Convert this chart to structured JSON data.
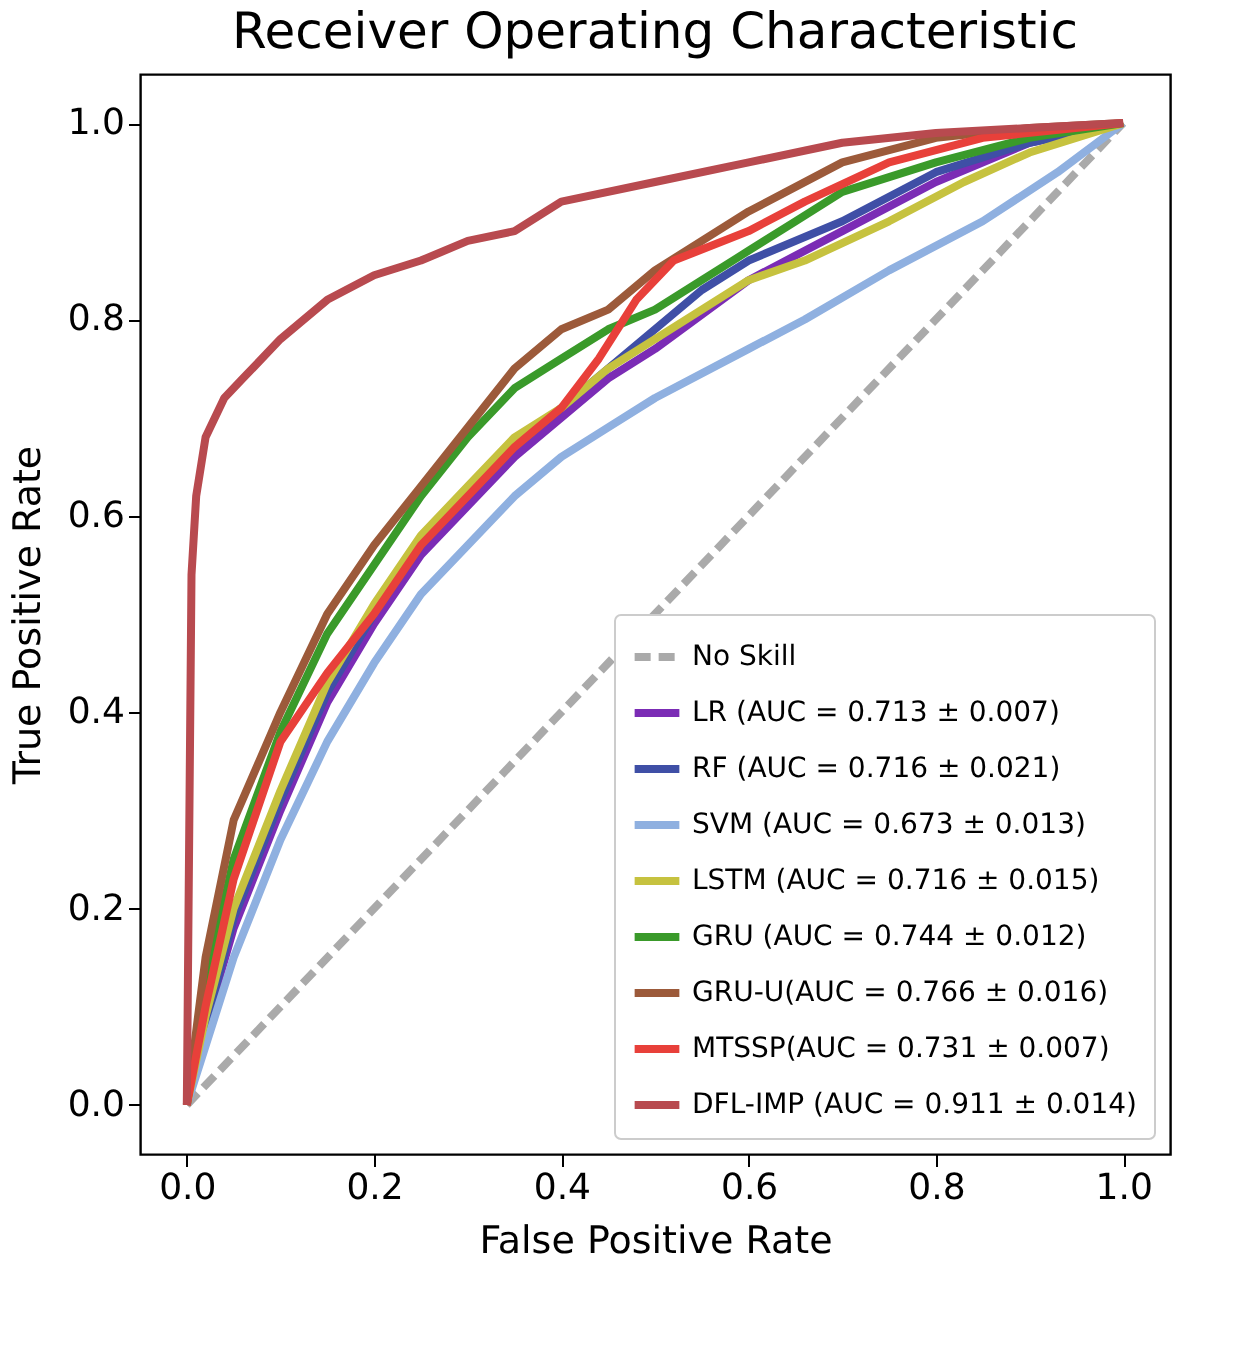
{
  "chart_data": {
    "type": "line",
    "title": "Receiver Operating Characteristic",
    "xlabel": "False Positive Rate",
    "ylabel": "True Positive Rate",
    "xlim": [
      -0.05,
      1.05
    ],
    "ylim": [
      -0.05,
      1.05
    ],
    "xticks": [
      {
        "value": 0,
        "label": "0.0"
      },
      {
        "value": 0.2,
        "label": "0.2"
      },
      {
        "value": 0.4,
        "label": "0.4"
      },
      {
        "value": 0.6,
        "label": "0.6"
      },
      {
        "value": 0.8,
        "label": "0.8"
      },
      {
        "value": 1,
        "label": "1.0"
      }
    ],
    "yticks": [
      {
        "value": 0,
        "label": "0.0"
      },
      {
        "value": 0.2,
        "label": "0.2"
      },
      {
        "value": 0.4,
        "label": "0.4"
      },
      {
        "value": 0.6,
        "label": "0.6"
      },
      {
        "value": 0.8,
        "label": "0.8"
      },
      {
        "value": 1,
        "label": "1.0"
      }
    ],
    "grid": false,
    "legend": "bottom right",
    "marker": "none",
    "series": [
      {
        "name": "No Skill",
        "color": "#aaaaaa",
        "line_style": "dashed",
        "x": [
          0,
          1
        ],
        "values": [
          0,
          1
        ]
      },
      {
        "name": "LR (AUC = 0.713 ± 0.007)",
        "color": "#7b2cb5",
        "x": [
          0,
          0.02,
          0.05,
          0.1,
          0.15,
          0.2,
          0.25,
          0.3,
          0.35,
          0.4,
          0.45,
          0.5,
          0.6,
          0.7,
          0.8,
          0.9,
          1
        ],
        "values": [
          0,
          0.08,
          0.18,
          0.3,
          0.41,
          0.49,
          0.56,
          0.61,
          0.66,
          0.7,
          0.74,
          0.77,
          0.84,
          0.89,
          0.94,
          0.98,
          1
        ]
      },
      {
        "name": "RF (AUC = 0.716 ± 0.021)",
        "color": "#3f4fa6",
        "x": [
          0,
          0.02,
          0.05,
          0.1,
          0.15,
          0.2,
          0.25,
          0.3,
          0.35,
          0.4,
          0.45,
          0.5,
          0.55,
          0.6,
          0.7,
          0.8,
          0.9,
          1
        ],
        "values": [
          0,
          0.08,
          0.19,
          0.31,
          0.42,
          0.5,
          0.57,
          0.62,
          0.67,
          0.71,
          0.75,
          0.79,
          0.83,
          0.86,
          0.9,
          0.95,
          0.98,
          1
        ]
      },
      {
        "name": "SVM (AUC = 0.673 ± 0.013)",
        "color": "#8fb0e0",
        "x": [
          0,
          0.02,
          0.05,
          0.1,
          0.15,
          0.2,
          0.25,
          0.3,
          0.35,
          0.4,
          0.45,
          0.5,
          0.6,
          0.66,
          0.75,
          0.85,
          0.93,
          1
        ],
        "values": [
          0,
          0.06,
          0.15,
          0.27,
          0.37,
          0.45,
          0.52,
          0.57,
          0.62,
          0.66,
          0.69,
          0.72,
          0.77,
          0.8,
          0.85,
          0.9,
          0.95,
          1
        ]
      },
      {
        "name": "LSTM (AUC = 0.716 ± 0.015)",
        "color": "#c6c23f",
        "x": [
          0,
          0.02,
          0.05,
          0.1,
          0.15,
          0.2,
          0.25,
          0.3,
          0.35,
          0.4,
          0.45,
          0.5,
          0.55,
          0.6,
          0.66,
          0.75,
          0.83,
          0.9,
          1
        ],
        "values": [
          0,
          0.09,
          0.2,
          0.32,
          0.43,
          0.51,
          0.58,
          0.63,
          0.68,
          0.71,
          0.75,
          0.78,
          0.81,
          0.84,
          0.86,
          0.9,
          0.94,
          0.97,
          1
        ]
      },
      {
        "name": "GRU (AUC = 0.744 ± 0.012)",
        "color": "#3a9a2a",
        "x": [
          0,
          0.02,
          0.05,
          0.1,
          0.15,
          0.2,
          0.25,
          0.3,
          0.35,
          0.4,
          0.45,
          0.5,
          0.55,
          0.6,
          0.65,
          0.7,
          0.8,
          0.9,
          1
        ],
        "values": [
          0,
          0.12,
          0.25,
          0.38,
          0.48,
          0.55,
          0.62,
          0.68,
          0.73,
          0.76,
          0.79,
          0.81,
          0.84,
          0.87,
          0.9,
          0.93,
          0.96,
          0.985,
          1
        ]
      },
      {
        "name": "GRU-U(AUC = 0.766 ± 0.016)",
        "color": "#9c5a3a",
        "x": [
          0,
          0.02,
          0.05,
          0.1,
          0.15,
          0.2,
          0.25,
          0.3,
          0.35,
          0.4,
          0.45,
          0.5,
          0.55,
          0.6,
          0.7,
          0.8,
          0.9,
          1
        ],
        "values": [
          0,
          0.15,
          0.29,
          0.4,
          0.5,
          0.57,
          0.63,
          0.69,
          0.75,
          0.79,
          0.81,
          0.85,
          0.88,
          0.91,
          0.96,
          0.985,
          0.995,
          1
        ]
      },
      {
        "name": "MTSSP(AUC = 0.731 ± 0.007)",
        "color": "#e8403a",
        "x": [
          0,
          0.02,
          0.05,
          0.1,
          0.15,
          0.2,
          0.25,
          0.3,
          0.35,
          0.4,
          0.44,
          0.48,
          0.52,
          0.6,
          0.66,
          0.75,
          0.85,
          1
        ],
        "values": [
          0,
          0.1,
          0.23,
          0.37,
          0.44,
          0.5,
          0.57,
          0.62,
          0.67,
          0.71,
          0.76,
          0.82,
          0.86,
          0.89,
          0.92,
          0.96,
          0.985,
          1
        ]
      },
      {
        "name": "DFL-IMP (AUC = 0.911 ± 0.014)",
        "color": "#b84a4f",
        "x": [
          0,
          0.005,
          0.01,
          0.02,
          0.04,
          0.06,
          0.1,
          0.15,
          0.2,
          0.25,
          0.3,
          0.35,
          0.4,
          0.5,
          0.6,
          0.7,
          0.8,
          0.9,
          1
        ],
        "values": [
          0,
          0.54,
          0.62,
          0.68,
          0.72,
          0.74,
          0.78,
          0.82,
          0.845,
          0.86,
          0.88,
          0.89,
          0.92,
          0.94,
          0.96,
          0.98,
          0.99,
          0.995,
          1
        ]
      }
    ]
  }
}
